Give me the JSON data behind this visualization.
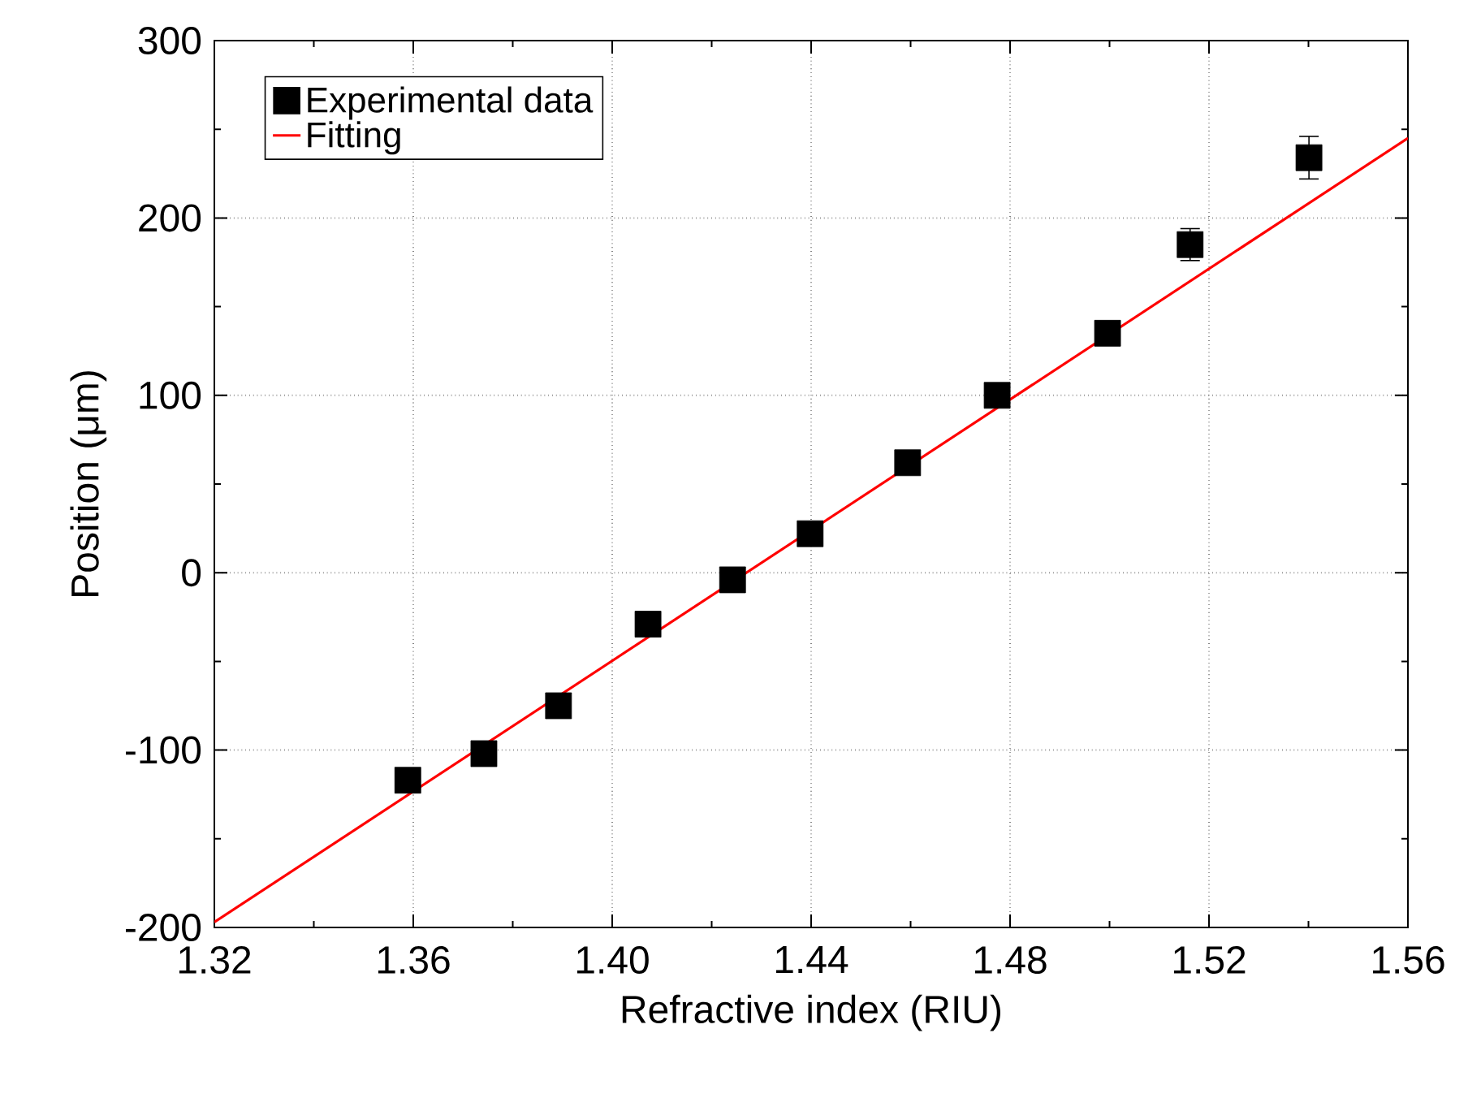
{
  "chart_data": {
    "type": "scatter",
    "xlabel": "Refractive index (RIU)",
    "ylabel": "Position (μm)",
    "xlim": [
      1.32,
      1.56
    ],
    "ylim": [
      -200,
      300
    ],
    "xticks": [
      1.32,
      1.36,
      {
        "value": 1.4,
        "label": "1.40"
      },
      1.44,
      1.48,
      1.52,
      1.56
    ],
    "yticks": [
      -200,
      -100,
      0,
      100,
      200,
      300
    ],
    "grid": true,
    "legend": "top left",
    "series": [
      {
        "name": "Experimental data",
        "marker": "square",
        "color": "#000000",
        "x": [
          1.3589,
          1.3742,
          1.3892,
          1.4072,
          1.4242,
          1.4398,
          1.4594,
          1.4774,
          1.4996,
          1.5162,
          1.5401
        ],
        "values": [
          -117,
          -102,
          -75,
          -29,
          -4,
          22,
          62,
          100,
          135,
          185,
          234
        ],
        "errors": [
          null,
          null,
          null,
          null,
          null,
          null,
          null,
          null,
          null,
          9,
          12
        ]
      },
      {
        "name": "Fitting",
        "type": "line",
        "marker": "none",
        "line_style": "solid",
        "color": "#ff0000",
        "x": [
          1.32,
          1.56
        ],
        "values": [
          -197,
          245
        ]
      }
    ]
  }
}
